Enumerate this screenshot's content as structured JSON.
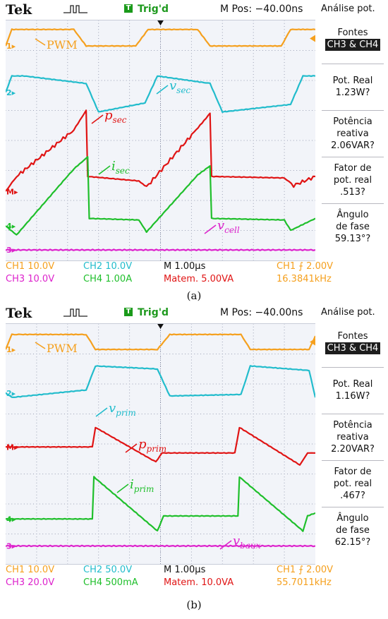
{
  "colors": {
    "ch1": "#f5a01e",
    "ch2": "#22bccc",
    "math": "#e01414",
    "ch4": "#1fbf2b",
    "ch3": "#dd22cc"
  },
  "chart_data": [
    {
      "type": "line",
      "caption": "(a)",
      "brand": "Tek",
      "trigger_status": "Trig'd",
      "m_pos": "M Pos: −40.00ns",
      "panel": {
        "title": "Análise pot.",
        "fontes_label": "Fontes",
        "fontes_value": "CH3 & CH4",
        "real_label": "Pot. Real",
        "real_value": "1.23W?",
        "reactive_label1": "Potência",
        "reactive_label2": "reativa",
        "reactive_value": "2.06VAR?",
        "pf_label1": "Fator de",
        "pf_label2": "pot. real",
        "pf_value": ".513?",
        "angle_label1": "Ângulo",
        "angle_label2": "de fase",
        "angle_value": "59.13°?"
      },
      "status": {
        "ch1": "CH1  10.0V",
        "ch2": "CH2  10.0V",
        "timebase": "M 1.00µs",
        "trigger": "CH1  ⨍  2.00V",
        "ch3": "CH3  10.0V",
        "ch4": "CH4  1.00A",
        "math": "Matem. 5.00VA",
        "freq": "16.3841kHz"
      },
      "channel_markers": {
        "ch1": "1▸",
        "ch2": "2▸",
        "math": "M▸",
        "ch4": "4▸",
        "ch3": "3▸"
      },
      "waveform_labels": {
        "pwm": "PWM",
        "ch2_base": "v",
        "ch2_sub": "sec",
        "math_base": "p",
        "math_sub": "sec",
        "ch4_base": "i",
        "ch4_sub": "sec",
        "ch3_base": "v",
        "ch3_sub": "cell"
      },
      "x_range_divisions": [
        0,
        10
      ],
      "y_range_divisions": [
        -4,
        4
      ],
      "grid": true,
      "series": [
        {
          "name": "PWM",
          "channel": "CH1",
          "x": [
            0,
            0.2,
            0.6,
            2.2,
            2.6,
            4.2,
            4.6,
            6.2,
            6.6,
            8.9,
            9.2,
            10
          ],
          "y": [
            3.15,
            3.7,
            3.7,
            3.7,
            3.15,
            3.15,
            3.7,
            3.7,
            3.15,
            3.15,
            3.7,
            3.7
          ]
        },
        {
          "name": "v_sec",
          "channel": "CH2",
          "x": [
            0,
            0.2,
            0.6,
            2.6,
            3.0,
            4.5,
            4.9,
            6.6,
            7.0,
            9.2,
            9.6,
            10
          ],
          "y": [
            1.6,
            2.15,
            2.15,
            1.9,
            0.95,
            1.25,
            2.15,
            1.9,
            0.95,
            1.2,
            2.15,
            2.15
          ]
        },
        {
          "name": "p_sec",
          "channel": "Math",
          "x": [
            0,
            0.35,
            2.2,
            2.6,
            2.65,
            4.3,
            4.55,
            6.15,
            6.6,
            6.65,
            9.0,
            9.3,
            10
          ],
          "y": [
            -1.7,
            -1.2,
            0.35,
            1.0,
            -1.2,
            -1.35,
            -1.55,
            0.35,
            0.9,
            -1.2,
            -1.25,
            -1.5,
            -1.2
          ]
        },
        {
          "name": "i_sec",
          "channel": "CH4",
          "x": [
            0,
            0.35,
            2.2,
            2.65,
            2.7,
            4.3,
            4.55,
            6.2,
            6.6,
            6.65,
            9.0,
            9.2,
            10
          ],
          "y": [
            -2.85,
            -3.15,
            -0.95,
            -0.55,
            -2.6,
            -2.65,
            -3.05,
            -1.15,
            -0.85,
            -2.6,
            -2.65,
            -3.0,
            -2.6
          ]
        },
        {
          "name": "v_cell",
          "channel": "CH3",
          "x": [
            0,
            10
          ],
          "y": [
            -3.65,
            -3.65
          ]
        }
      ]
    },
    {
      "type": "line",
      "caption": "(b)",
      "brand": "Tek",
      "trigger_status": "Trig'd",
      "m_pos": "M Pos: −40.00ns",
      "panel": {
        "title": "Análise pot.",
        "fontes_label": "Fontes",
        "fontes_value": "CH3 & CH4",
        "real_label": "Pot. Real",
        "real_value": "1.16W?",
        "reactive_label1": "Potência",
        "reactive_label2": "reativa",
        "reactive_value": "2.20VAR?",
        "pf_label1": "Fator de",
        "pf_label2": "pot. real",
        "pf_value": ".467?",
        "angle_label1": "Ângulo",
        "angle_label2": "de fase",
        "angle_value": "62.15°?"
      },
      "status": {
        "ch1": "CH1  10.0V",
        "ch2": "CH2  50.0V",
        "timebase": "M 1.00µs",
        "trigger": "CH1  ⨍  2.00V",
        "ch3": "CH3  20.0V",
        "ch4": "CH4  500mA",
        "math": "Matem. 10.0VA",
        "freq": "55.7011kHz"
      },
      "channel_markers": {
        "ch1": "1▸",
        "ch2": "2▸",
        "math": "M▸",
        "ch4": "4▸",
        "ch3": "3▸"
      },
      "waveform_labels": {
        "pwm": "PWM",
        "ch2_base": "v",
        "ch2_sub": "prim",
        "math_base": "p",
        "math_sub": "prim",
        "ch4_base": "i",
        "ch4_sub": "prim",
        "ch3_base": "v",
        "ch3_sub": "baux"
      },
      "x_range_divisions": [
        0,
        10
      ],
      "y_range_divisions": [
        -4,
        4
      ],
      "grid": true,
      "series": [
        {
          "name": "PWM",
          "channel": "CH1",
          "x": [
            0,
            0.2,
            0.5,
            2.6,
            2.9,
            4.9,
            5.3,
            7.6,
            7.9,
            9.8,
            10
          ],
          "y": [
            3.15,
            3.65,
            3.65,
            3.65,
            3.15,
            3.15,
            3.65,
            3.65,
            3.15,
            3.15,
            3.6
          ]
        },
        {
          "name": "v_prim",
          "channel": "CH2",
          "x": [
            0,
            0.2,
            2.6,
            2.9,
            4.9,
            5.3,
            7.6,
            7.9,
            9.8,
            10
          ],
          "y": [
            1.7,
            1.55,
            1.8,
            2.6,
            2.5,
            1.6,
            1.65,
            2.6,
            2.45,
            1.55
          ]
        },
        {
          "name": "p_prim",
          "channel": "Math",
          "x": [
            0,
            2.8,
            2.9,
            4.85,
            5.05,
            7.4,
            7.55,
            9.5,
            9.75,
            10
          ],
          "y": [
            -0.1,
            -0.1,
            0.55,
            -0.6,
            -0.3,
            -0.3,
            0.55,
            -0.7,
            -0.3,
            -0.3
          ]
        },
        {
          "name": "i_prim",
          "channel": "CH4",
          "x": [
            0,
            2.8,
            2.85,
            4.9,
            5.1,
            7.5,
            7.55,
            9.6,
            9.75,
            10
          ],
          "y": [
            -2.5,
            -2.5,
            -1.1,
            -2.9,
            -2.4,
            -2.4,
            -1.1,
            -2.9,
            -2.4,
            -2.3
          ]
        },
        {
          "name": "v_baux",
          "channel": "CH3",
          "x": [
            0,
            10
          ],
          "y": [
            -3.4,
            -3.4
          ]
        }
      ]
    }
  ]
}
